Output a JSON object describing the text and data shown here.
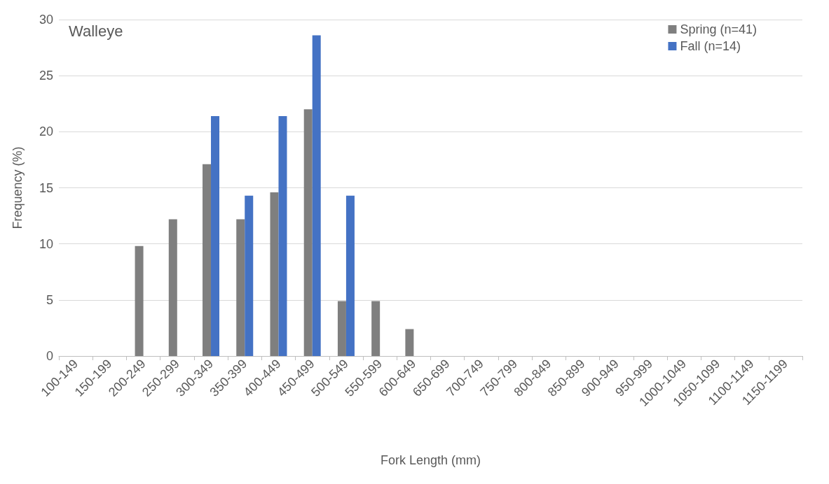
{
  "chart_data": {
    "type": "bar",
    "ylabel": "Frequency (%)",
    "xlabel": "Fork Length (mm)",
    "annotations": [
      "Walleye"
    ],
    "categories": [
      "100-149",
      "150-199",
      "200-249",
      "250-299",
      "300-349",
      "350-399",
      "400-449",
      "450-499",
      "500-549",
      "550-599",
      "600-649",
      "650-699",
      "700-749",
      "750-799",
      "800-849",
      "850-899",
      "900-949",
      "950-999",
      "1000-1049",
      "1050-1099",
      "1100-1149",
      "1150-1199"
    ],
    "series": [
      {
        "name": "Spring (n=41)",
        "color": "#7f7f7f",
        "values": [
          0,
          0,
          9.8,
          12.2,
          17.1,
          12.2,
          14.6,
          22.0,
          4.9,
          4.9,
          2.4,
          0,
          0,
          0,
          0,
          0,
          0,
          0,
          0,
          0,
          0,
          0
        ]
      },
      {
        "name": "Fall (n=14)",
        "color": "#4472c4",
        "values": [
          0,
          0,
          0,
          0,
          21.4,
          14.3,
          21.4,
          28.6,
          14.3,
          0,
          0,
          0,
          0,
          0,
          0,
          0,
          0,
          0,
          0,
          0,
          0,
          0
        ]
      }
    ],
    "ylim": [
      0,
      30
    ],
    "yticks": [
      0,
      5,
      10,
      15,
      20,
      25,
      30
    ],
    "grid": "y",
    "legend": "top right"
  }
}
